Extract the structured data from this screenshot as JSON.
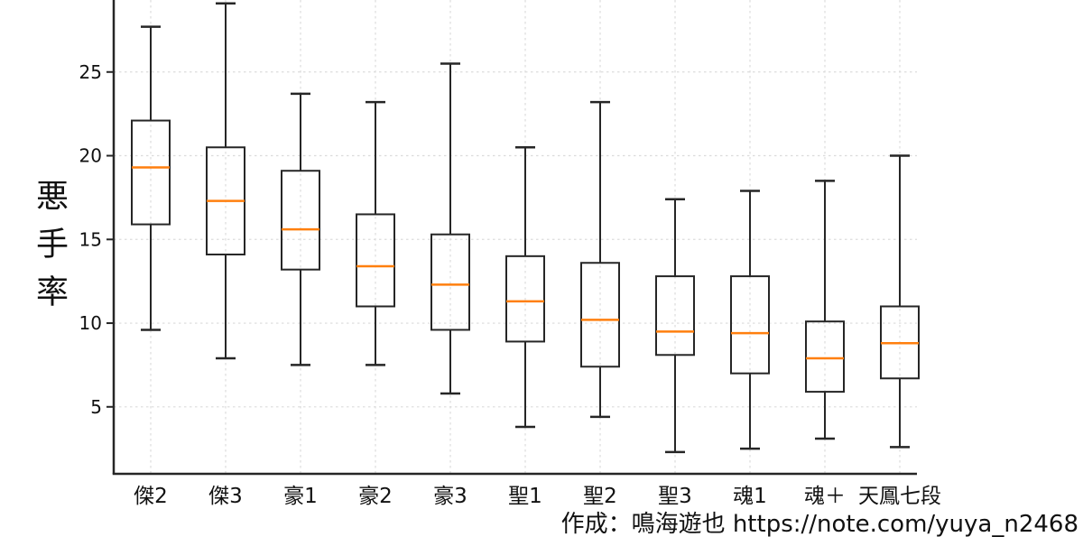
{
  "chart_data": {
    "type": "boxplot",
    "title": "",
    "ylabel": "悪手率",
    "xlabel": "",
    "categories": [
      "傑2",
      "傑3",
      "豪1",
      "豪2",
      "豪3",
      "聖1",
      "聖2",
      "聖3",
      "魂1",
      "魂＋",
      "天鳳七段"
    ],
    "series": [
      {
        "label": "傑2",
        "whisker_low": 9.6,
        "q1": 15.9,
        "median": 19.3,
        "q3": 22.1,
        "whisker_high": 27.7
      },
      {
        "label": "傑3",
        "whisker_low": 7.9,
        "q1": 14.1,
        "median": 17.3,
        "q3": 20.5,
        "whisker_high": 29.1
      },
      {
        "label": "豪1",
        "whisker_low": 7.5,
        "q1": 13.2,
        "median": 15.6,
        "q3": 19.1,
        "whisker_high": 23.7
      },
      {
        "label": "豪2",
        "whisker_low": 7.5,
        "q1": 11.0,
        "median": 13.4,
        "q3": 16.5,
        "whisker_high": 23.2
      },
      {
        "label": "豪3",
        "whisker_low": 5.8,
        "q1": 9.6,
        "median": 12.3,
        "q3": 15.3,
        "whisker_high": 25.5
      },
      {
        "label": "聖1",
        "whisker_low": 3.8,
        "q1": 8.9,
        "median": 11.3,
        "q3": 14.0,
        "whisker_high": 20.5
      },
      {
        "label": "聖2",
        "whisker_low": 4.4,
        "q1": 7.4,
        "median": 10.2,
        "q3": 13.6,
        "whisker_high": 23.2
      },
      {
        "label": "聖3",
        "whisker_low": 2.3,
        "q1": 8.1,
        "median": 9.5,
        "q3": 12.8,
        "whisker_high": 17.4
      },
      {
        "label": "魂1",
        "whisker_low": 2.5,
        "q1": 7.0,
        "median": 9.4,
        "q3": 12.8,
        "whisker_high": 17.9
      },
      {
        "label": "魂＋",
        "whisker_low": 3.1,
        "q1": 5.9,
        "median": 7.9,
        "q3": 10.1,
        "whisker_high": 18.5
      },
      {
        "label": "天鳳七段",
        "whisker_low": 2.6,
        "q1": 6.7,
        "median": 8.8,
        "q3": 11.0,
        "whisker_high": 20.0
      }
    ],
    "yticks": [
      5,
      10,
      15,
      20,
      25
    ],
    "ylim_visible": [
      1.0,
      29.3
    ],
    "grid": "dashed, both horizontal and vertical",
    "legend": "none",
    "colors": {
      "median_line": "#ff7f0e",
      "box_line": "#262626",
      "gridline": "#dbdbdb",
      "text": "#111111",
      "background": "#ffffff"
    },
    "attribution": "作成：鳴海遊也 https://note.com/yuya_n2468"
  }
}
